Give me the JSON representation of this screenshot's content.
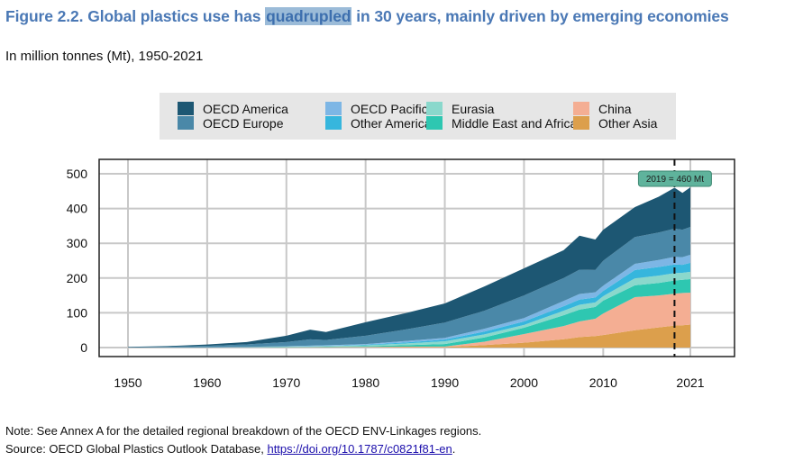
{
  "figure": {
    "title_prefix": "Figure 2.2. Global plastics use has ",
    "title_highlight": "quadrupled",
    "title_suffix": " in 30 years, mainly driven by emerging economies",
    "subtitle": "In million tonnes (Mt), 1950-2021",
    "note": "Note: See Annex A for the detailed regional breakdown of the OECD ENV-Linkages regions.",
    "source_prefix": "Source: OECD Global Plastics Outlook Database, ",
    "source_link": "https://doi.org/10.1787/c0821f81-en",
    "source_suffix": "."
  },
  "chart_data": {
    "type": "area",
    "stacked": true,
    "title": "Global plastics use",
    "xlabel": "",
    "ylabel": "",
    "unit": "Mt",
    "xlim": [
      1945,
      2026
    ],
    "ylim": [
      -25,
      545
    ],
    "x_ticks": [
      1950,
      1960,
      1970,
      1980,
      1990,
      2000,
      2010,
      2021
    ],
    "y_ticks": [
      0,
      100,
      200,
      300,
      400,
      500
    ],
    "grid": true,
    "legend_position": "top",
    "x": [
      1950,
      1955,
      1960,
      1965,
      1970,
      1973,
      1975,
      1980,
      1985,
      1990,
      1995,
      2000,
      2005,
      2007,
      2009,
      2010,
      2014,
      2017,
      2019,
      2020,
      2021
    ],
    "series": [
      {
        "name": "Other Asia",
        "color": "#dc9f4c",
        "values": [
          0,
          0,
          0,
          0.1,
          0.3,
          0.4,
          0.5,
          0.8,
          1.2,
          1.5,
          7,
          14,
          24,
          30,
          33,
          36,
          50,
          58,
          63,
          64,
          66
        ]
      },
      {
        "name": "China",
        "color": "#f4ae93",
        "values": [
          0,
          0,
          0,
          0.2,
          0.5,
          0.7,
          0.8,
          1.2,
          1.5,
          1.5,
          10,
          25,
          38,
          45,
          50,
          62,
          95,
          92,
          92,
          93,
          92
        ]
      },
      {
        "name": "Middle East and Africa",
        "color": "#2ec7b1",
        "values": [
          0,
          0,
          0.1,
          0.3,
          0.7,
          1,
          1.2,
          2,
          4,
          7,
          12,
          18,
          31,
          34,
          34,
          37,
          34,
          36,
          38,
          38,
          39
        ]
      },
      {
        "name": "Eurasia",
        "color": "#8ad8cc",
        "values": [
          0,
          0,
          0.2,
          0.4,
          1,
          1.2,
          1.4,
          2.5,
          5,
          8,
          9,
          8,
          13,
          14,
          13,
          13,
          20,
          21,
          21,
          20,
          21
        ]
      },
      {
        "name": "Other America",
        "color": "#36b6dd",
        "values": [
          0,
          0.1,
          0.2,
          0.4,
          0.5,
          0.7,
          0.8,
          1.5,
          3,
          5,
          8,
          10,
          13,
          15,
          14,
          15,
          24,
          25,
          25,
          23,
          26
        ]
      },
      {
        "name": "OECD Pacific",
        "color": "#7db6e5",
        "values": [
          0,
          0.1,
          0.3,
          0.6,
          1,
          1.5,
          2,
          2,
          4,
          5,
          8,
          10,
          15,
          16,
          15,
          15,
          18,
          20,
          22,
          22,
          23
        ]
      },
      {
        "name": "OECD Europe",
        "color": "#4a88a8",
        "values": [
          1,
          2,
          4,
          7,
          12,
          18,
          15,
          24,
          33,
          44,
          52,
          65,
          66,
          70,
          64,
          72,
          77,
          79,
          81,
          79,
          80
        ]
      },
      {
        "name": "OECD America",
        "color": "#1d5773",
        "values": [
          1,
          2,
          4,
          7,
          18,
          28,
          23,
          39,
          47,
          55,
          70,
          78,
          80,
          98,
          88,
          89,
          86,
          103,
          118,
          106,
          114
        ]
      }
    ],
    "legend_order": [
      "OECD America",
      "OECD Europe",
      "OECD Pacific",
      "Other America",
      "Eurasia",
      "Middle East and Africa",
      "China",
      "Other Asia"
    ],
    "annotations": [
      {
        "type": "vline",
        "x": 2019,
        "style": "dashed",
        "label": "2019 = 460 Mt",
        "label_color": "#5fb39c"
      }
    ]
  }
}
